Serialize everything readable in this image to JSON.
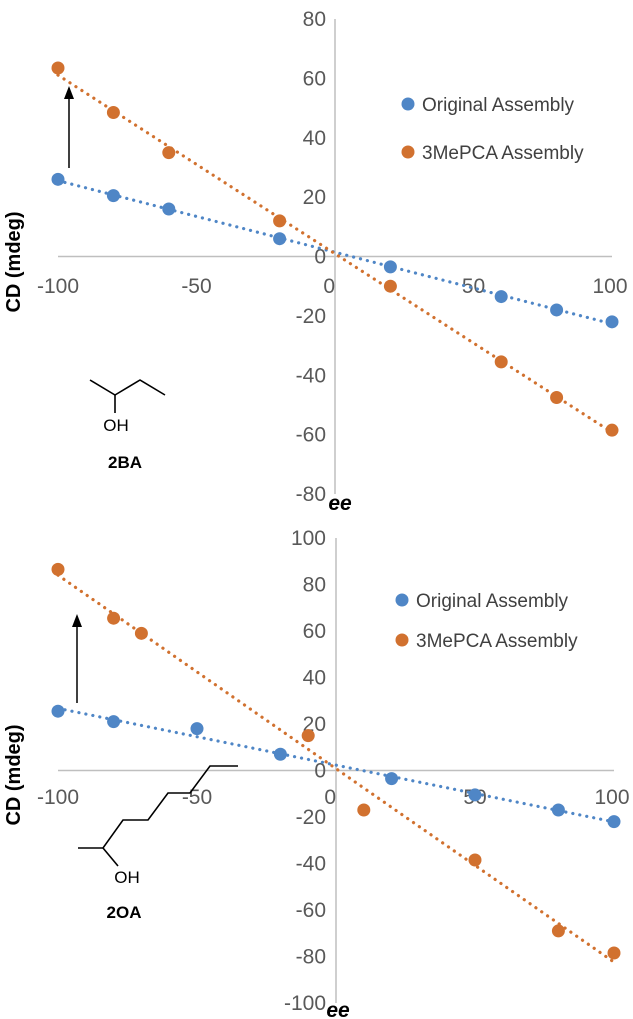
{
  "colors": {
    "original": "#4f86c6",
    "mepca": "#d1712f",
    "axis": "#bfbfbf",
    "tick_text": "#595959"
  },
  "chart_data": [
    {
      "type": "scatter",
      "title": "",
      "xlabel": "ee",
      "ylabel": "CD (mdeg)",
      "xlim": [
        -100,
        100
      ],
      "ylim": [
        -80,
        80
      ],
      "xticks": [
        "-100",
        "-50",
        "0",
        "50",
        "100"
      ],
      "yticks": [
        "80",
        "60",
        "40",
        "20",
        "0",
        "-20",
        "-40",
        "-60",
        "-80"
      ],
      "legend_position": "top-right",
      "trendlines": "dotted linear",
      "series": [
        {
          "name": "Original Assembly",
          "color": "#4f86c6",
          "x": [
            -100,
            -80,
            -60,
            -20,
            20,
            60,
            80,
            100
          ],
          "y": [
            26,
            20.5,
            16,
            6,
            -3.5,
            -13.5,
            -18,
            -22
          ]
        },
        {
          "name": "3MePCA Assembly",
          "color": "#d1712f",
          "x": [
            -100,
            -80,
            -60,
            -20,
            20,
            60,
            80,
            100
          ],
          "y": [
            63.5,
            48.5,
            35,
            12,
            -10,
            -35.5,
            -47.5,
            -58.5
          ]
        }
      ],
      "annotation": {
        "label": "2BA",
        "oh": "OH",
        "arrow": "up"
      }
    },
    {
      "type": "scatter",
      "title": "",
      "xlabel": "ee",
      "ylabel": "CD (mdeg)",
      "xlim": [
        -100,
        100
      ],
      "ylim": [
        -100,
        100
      ],
      "xticks": [
        "-100",
        "-50",
        "0",
        "50",
        "100"
      ],
      "yticks": [
        "100",
        "80",
        "60",
        "40",
        "20",
        "0",
        "-20",
        "-40",
        "-60",
        "-80",
        "-100"
      ],
      "legend_position": "top-right",
      "trendlines": "dotted linear",
      "series": [
        {
          "name": "Original Assembly",
          "color": "#4f86c6",
          "x": [
            -100,
            -80,
            -50,
            -20,
            20,
            50,
            80,
            100
          ],
          "y": [
            25.5,
            21,
            18,
            7,
            -3.5,
            -10.5,
            -17,
            -22
          ]
        },
        {
          "name": "3MePCA Assembly",
          "color": "#d1712f",
          "x": [
            -100,
            -80,
            -70,
            -10,
            10,
            50,
            80,
            100
          ],
          "y": [
            86.5,
            65.5,
            59,
            15,
            -17,
            -38.5,
            -69,
            -78.5
          ]
        }
      ],
      "annotation": {
        "label": "2OA",
        "oh": "OH",
        "arrow": "up"
      }
    }
  ]
}
